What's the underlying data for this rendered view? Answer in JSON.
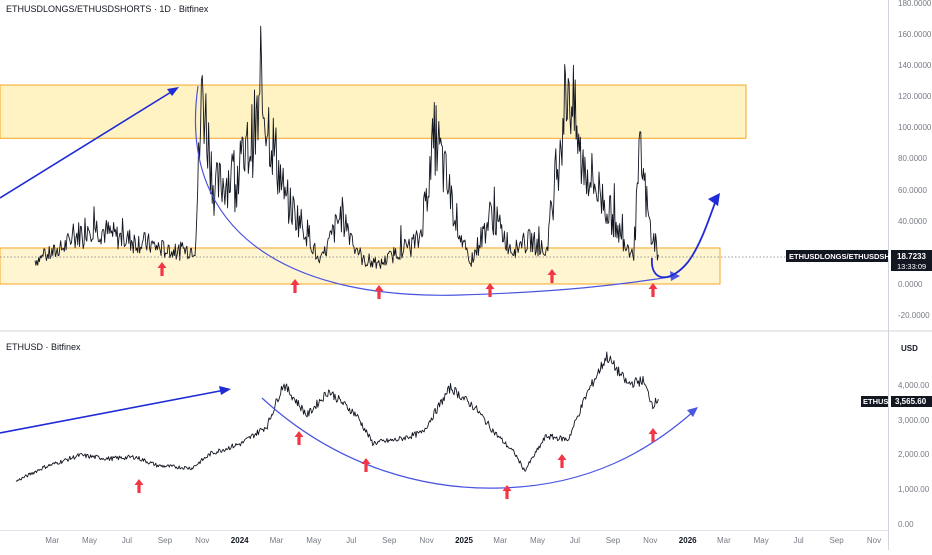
{
  "colors": {
    "background": "#ffffff",
    "price_line": "#131722",
    "zone_fill": "#fff3c4",
    "zone_border": "#f5a623",
    "arrow_blue": "#1f2bd6",
    "curve_blue": "#4a55e0",
    "marker_red": "#f23645",
    "grid_text": "#787b86",
    "axis_line": "#d1d4dc",
    "label_bg": "#131722",
    "label_text": "#ffffff"
  },
  "chart_data": [
    {
      "type": "line",
      "title": "ETHUSDLONGS/ETHUSDSHORTS · 1D · Bitfinex",
      "y_tick_labels": [
        "180.0000",
        "160.0000",
        "140.0000",
        "120.0000",
        "100.0000",
        "80.0000",
        "60.0000",
        "40.0000",
        "20.0000",
        "0.0000",
        "-20.0000"
      ],
      "ylim": [
        -20,
        180
      ],
      "last_value_label": "18.7233",
      "countdown_label": "13:33:09",
      "price_tag": "ETHUSDLONGS/ETHUSDSHORTS",
      "resistance_zone": [
        93,
        127
      ],
      "support_zone": [
        0,
        23
      ],
      "marker_count": 7,
      "anchors": [
        [
          "2023-02-01",
          15
        ],
        [
          "2023-03-15",
          22
        ],
        [
          "2023-05-01",
          38
        ],
        [
          "2023-06-15",
          30
        ],
        [
          "2023-08-01",
          26
        ],
        [
          "2023-09-15",
          20
        ],
        [
          "2023-10-20",
          23
        ],
        [
          "2023-11-01",
          125
        ],
        [
          "2023-11-20",
          60
        ],
        [
          "2024-01-05",
          75
        ],
        [
          "2024-02-10",
          115
        ],
        [
          "2024-03-15",
          55
        ],
        [
          "2024-04-25",
          30
        ],
        [
          "2024-05-10",
          12
        ],
        [
          "2024-06-15",
          45
        ],
        [
          "2024-07-20",
          15
        ],
        [
          "2024-08-15",
          12
        ],
        [
          "2024-09-20",
          22
        ],
        [
          "2024-10-20",
          28
        ],
        [
          "2024-11-15",
          95
        ],
        [
          "2024-12-10",
          55
        ],
        [
          "2025-01-10",
          12
        ],
        [
          "2025-02-15",
          45
        ],
        [
          "2025-03-20",
          22
        ],
        [
          "2025-04-20",
          28
        ],
        [
          "2025-05-15",
          20
        ],
        [
          "2025-06-20",
          132
        ],
        [
          "2025-07-10",
          80
        ],
        [
          "2025-08-15",
          55
        ],
        [
          "2025-09-15",
          30
        ],
        [
          "2025-10-05",
          20
        ],
        [
          "2025-10-15",
          82
        ],
        [
          "2025-11-01",
          35
        ],
        [
          "2025-11-14",
          18.7
        ]
      ]
    },
    {
      "type": "line",
      "title": "ETHUSD · Bitfinex",
      "y_tick_labels": [
        "4,000.00",
        "3,000.00",
        "2,000.00",
        "1,000.00",
        "0.00"
      ],
      "ylim": [
        0,
        4000
      ],
      "currency_label": "USD",
      "last_value_label": "3,565.60",
      "price_tag": "ETHUSD",
      "marker_count": 7,
      "anchors": [
        [
          "2023-01-01",
          1200
        ],
        [
          "2023-02-15",
          1600
        ],
        [
          "2023-04-15",
          1950
        ],
        [
          "2023-06-01",
          1850
        ],
        [
          "2023-07-15",
          1900
        ],
        [
          "2023-08-20",
          1650
        ],
        [
          "2023-10-15",
          1580
        ],
        [
          "2023-11-15",
          2000
        ],
        [
          "2024-01-05",
          2300
        ],
        [
          "2024-02-15",
          2800
        ],
        [
          "2024-03-12",
          4000
        ],
        [
          "2024-04-20",
          3100
        ],
        [
          "2024-05-25",
          3800
        ],
        [
          "2024-07-10",
          3100
        ],
        [
          "2024-08-05",
          2300
        ],
        [
          "2024-09-15",
          2400
        ],
        [
          "2024-10-25",
          2600
        ],
        [
          "2024-12-10",
          3900
        ],
        [
          "2025-01-20",
          3300
        ],
        [
          "2025-02-20",
          2600
        ],
        [
          "2025-03-25",
          2000
        ],
        [
          "2025-04-10",
          1500
        ],
        [
          "2025-05-15",
          2500
        ],
        [
          "2025-06-20",
          2400
        ],
        [
          "2025-07-20",
          3700
        ],
        [
          "2025-08-22",
          4800
        ],
        [
          "2025-09-25",
          4000
        ],
        [
          "2025-10-20",
          4100
        ],
        [
          "2025-11-05",
          3400
        ],
        [
          "2025-11-14",
          3565.6
        ]
      ]
    }
  ],
  "x_axis": {
    "tick_labels": [
      "Mar",
      "May",
      "Jul",
      "Sep",
      "Nov",
      "2024",
      "Mar",
      "May",
      "Jul",
      "Sep",
      "Nov",
      "2025",
      "Mar",
      "May",
      "Jul",
      "Sep",
      "Nov",
      "2026",
      "Mar",
      "May",
      "Jul",
      "Sep",
      "Nov"
    ],
    "tick_dates": [
      "2023-03-01",
      "2023-05-01",
      "2023-07-01",
      "2023-09-01",
      "2023-11-01",
      "2024-01-01",
      "2024-03-01",
      "2024-05-01",
      "2024-07-01",
      "2024-09-01",
      "2024-11-01",
      "2025-01-01",
      "2025-03-01",
      "2025-05-01",
      "2025-07-01",
      "2025-09-01",
      "2025-11-01",
      "2026-01-01",
      "2026-03-01",
      "2026-05-01",
      "2026-07-01",
      "2026-09-01",
      "2026-11-01"
    ],
    "bold_labels": [
      "2024",
      "2025",
      "2026"
    ]
  }
}
